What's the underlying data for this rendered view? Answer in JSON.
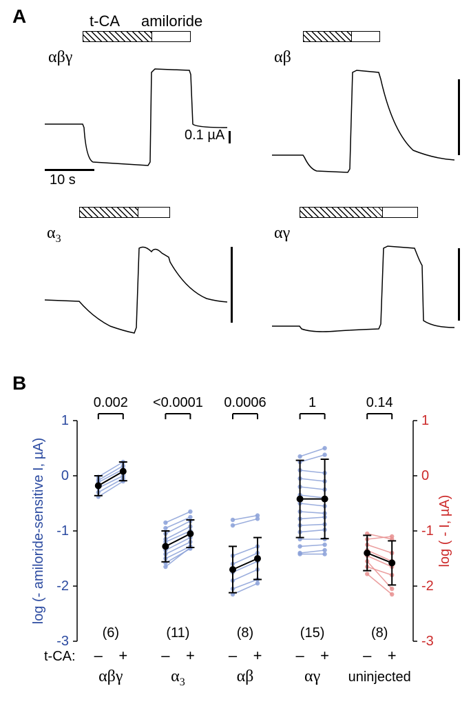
{
  "colors": {
    "bg": "#ffffff",
    "black": "#000000",
    "blue": "#2b4aa0",
    "blue_light": "#8aa0d8",
    "red": "#cc2a2a",
    "red_light": "#e88f8f"
  },
  "panelA": {
    "label": "A",
    "header_tca": "t-CA",
    "header_amiloride": "amiloride",
    "scale_current": "0.1 µA",
    "scale_time": "10 s",
    "traces": {
      "abg": {
        "label_html": "αβγ"
      },
      "ab": {
        "label_html": "αβ"
      },
      "a3": {
        "label_html": "α",
        "sub": "3"
      },
      "ag": {
        "label_html": "αγ"
      }
    }
  },
  "panelB": {
    "label": "B",
    "yaxis_left": "log (- amiloride-sensitive I, µA)",
    "yaxis_right": "log ( - I, µA)",
    "xaxis_prefix": "t-CA:",
    "x_minus": "–",
    "x_plus": "+",
    "ylim": [
      -3,
      1
    ],
    "ytick_step": 1,
    "groups": [
      {
        "name": "abg",
        "label_html": "αβγ",
        "p": "0.002",
        "n": "(6)",
        "mean": [
          -0.18,
          0.08
        ],
        "sd": [
          0.18,
          0.17
        ],
        "color": "blue",
        "lines": [
          [
            -0.02,
            0.25
          ],
          [
            -0.08,
            0.18
          ],
          [
            -0.12,
            0.12
          ],
          [
            -0.22,
            0.0
          ],
          [
            -0.3,
            -0.05
          ],
          [
            -0.38,
            -0.1
          ]
        ]
      },
      {
        "name": "a3",
        "label_html": "α",
        "sub": "3",
        "p": "<0.0001",
        "n": "(11)",
        "mean": [
          -1.28,
          -1.05
        ],
        "sd": [
          0.28,
          0.25
        ],
        "color": "blue",
        "lines": [
          [
            -0.85,
            -0.65
          ],
          [
            -0.95,
            -0.75
          ],
          [
            -1.05,
            -0.82
          ],
          [
            -1.15,
            -0.92
          ],
          [
            -1.2,
            -1.0
          ],
          [
            -1.28,
            -1.05
          ],
          [
            -1.35,
            -1.12
          ],
          [
            -1.42,
            -1.2
          ],
          [
            -1.5,
            -1.28
          ],
          [
            -1.58,
            -1.32
          ],
          [
            -1.65,
            -1.3
          ]
        ]
      },
      {
        "name": "ab",
        "label_html": "αβ",
        "p": "0.0006",
        "n": "(8)",
        "mean": [
          -1.7,
          -1.5
        ],
        "sd": [
          0.42,
          0.38
        ],
        "color": "blue",
        "lines": [
          [
            -0.8,
            -0.72
          ],
          [
            -0.9,
            -0.78
          ],
          [
            -1.45,
            -1.28
          ],
          [
            -1.6,
            -1.4
          ],
          [
            -1.75,
            -1.55
          ],
          [
            -1.9,
            -1.7
          ],
          [
            -2.05,
            -1.88
          ],
          [
            -2.15,
            -1.95
          ]
        ]
      },
      {
        "name": "ag",
        "label_html": "αγ",
        "p": "1",
        "n": "(15)",
        "mean": [
          -0.42,
          -0.42
        ],
        "sd": [
          0.7,
          0.72
        ],
        "color": "blue",
        "lines": [
          [
            0.35,
            0.5
          ],
          [
            0.25,
            0.38
          ],
          [
            0.1,
            0.05
          ],
          [
            -0.05,
            -0.1
          ],
          [
            -0.2,
            -0.25
          ],
          [
            -0.35,
            -0.4
          ],
          [
            -0.5,
            -0.55
          ],
          [
            -0.65,
            -0.68
          ],
          [
            -0.78,
            -0.75
          ],
          [
            -0.9,
            -0.88
          ],
          [
            -1.02,
            -0.98
          ],
          [
            -1.15,
            -1.15
          ],
          [
            -1.28,
            -1.25
          ],
          [
            -1.4,
            -1.35
          ],
          [
            -1.42,
            -1.42
          ]
        ]
      },
      {
        "name": "uninj",
        "label_html": "uninjected",
        "p": "0.14",
        "n": "(8)",
        "mean": [
          -1.4,
          -1.58
        ],
        "sd": [
          0.32,
          0.4
        ],
        "color": "red",
        "lines": [
          [
            -1.05,
            -1.15
          ],
          [
            -1.15,
            -1.1
          ],
          [
            -1.25,
            -1.4
          ],
          [
            -1.35,
            -1.55
          ],
          [
            -1.45,
            -1.65
          ],
          [
            -1.55,
            -2.05
          ],
          [
            -1.65,
            -1.8
          ],
          [
            -1.78,
            -2.15
          ]
        ]
      }
    ]
  }
}
